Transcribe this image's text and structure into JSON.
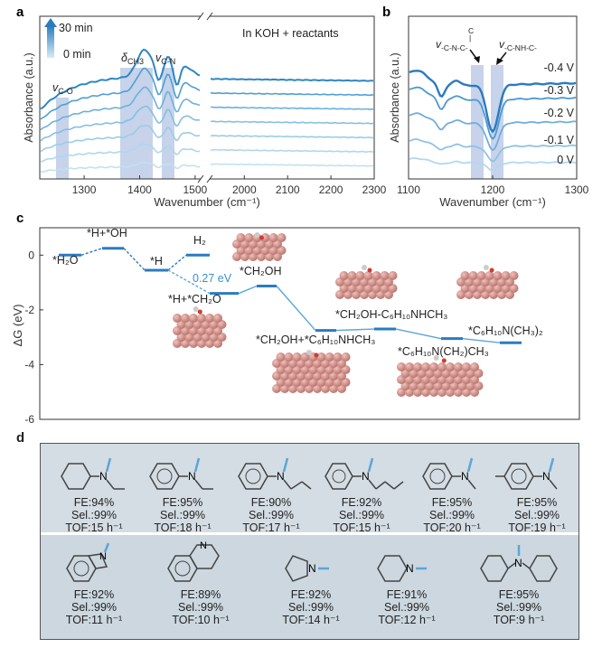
{
  "panels": {
    "a": "a",
    "b": "b",
    "c": "c",
    "d": "d"
  },
  "panel_a": {
    "legend_top": "30 min",
    "legend_bottom": "0 min",
    "condition": "In KOH + reactants",
    "ylabel": "Absorbance (a.u.)",
    "xlabel": "Wavenumber (cm⁻¹)",
    "band_labels": [
      "νC-O",
      "δCH3",
      "νC-N"
    ]
  },
  "panel_b": {
    "ylabel": "Absorbance (a.u.)",
    "xlabel": "Wavenumber (cm⁻¹)",
    "band_labels": [
      "ν-C-N-C-",
      "ν-C-NH-C-"
    ]
  },
  "panel_c": {
    "ylabel": "ΔG (eV)",
    "barrier_label": "0.27 eV"
  },
  "chart_data": [
    {
      "type": "line",
      "panel": "a",
      "title": "In KOH + reactants",
      "xlabel": "Wavenumber (cm⁻¹)",
      "ylabel": "Absorbance (a.u.)",
      "x_ranges": [
        [
          1220,
          1510
        ],
        [
          1920,
          2300
        ]
      ],
      "x_ticks": [
        1300,
        1400,
        1500,
        2000,
        2100,
        2200,
        2300
      ],
      "series_count": 7,
      "series_order": "bottom 0 min to top 30 min",
      "highlight_bands": [
        {
          "label": "νC-O",
          "from": 1255,
          "to": 1270
        },
        {
          "label": "δCH3",
          "from": 1360,
          "to": 1420
        },
        {
          "label": "νC-N",
          "from": 1435,
          "to": 1448
        }
      ],
      "legend": [
        "0 min",
        "30 min"
      ]
    },
    {
      "type": "line",
      "panel": "b",
      "xlabel": "Wavenumber (cm⁻¹)",
      "ylabel": "Absorbance (a.u.)",
      "xlim": [
        1100,
        1300
      ],
      "x_ticks": [
        1100,
        1200,
        1300
      ],
      "series": [
        {
          "name": "-0.4 V"
        },
        {
          "name": "-0.3 V"
        },
        {
          "name": "-0.2 V"
        },
        {
          "name": "-0.1 V"
        },
        {
          "name": "0 V"
        }
      ],
      "highlight_bands": [
        {
          "label": "ν-C-N-C-",
          "from": 1175,
          "to": 1190
        },
        {
          "label": "ν-C-NH-C-",
          "from": 1195,
          "to": 1210
        }
      ]
    },
    {
      "type": "line",
      "panel": "c",
      "ylabel": "ΔG (eV)",
      "ylim": [
        -6,
        1
      ],
      "y_ticks": [
        0,
        -2,
        -4,
        -6
      ],
      "states": [
        {
          "label": "*H₂O",
          "dG": 0.0
        },
        {
          "label": "*H+*OH",
          "dG": 0.25
        },
        {
          "label": "*H",
          "dG": -0.55
        },
        {
          "label": "H₂",
          "dG": 0.0
        },
        {
          "label": "*H+*CH₂O",
          "dG": -1.4
        },
        {
          "label": "*CH₂OH",
          "dG": -1.13
        },
        {
          "label": "*CH₂OH+*C₆H₁₀NHCH₃",
          "dG": -2.75
        },
        {
          "label": "*CH₂OH-C₆H₁₀NHCH₃",
          "dG": -2.7
        },
        {
          "label": "*C₆H₁₀N(CH₂)CH₃",
          "dG": -3.05
        },
        {
          "label": "*C₆H₁₀N(CH₃)₂",
          "dG": -3.2
        }
      ],
      "annotation": "0.27 eV"
    },
    {
      "type": "table",
      "panel": "d",
      "columns": [
        "FE",
        "Sel.",
        "TOF"
      ],
      "rows": [
        {
          "product": "N-ethyl-N-methylcyclohexylamine",
          "FE": "FE:94%",
          "Sel": "Sel.:99%",
          "TOF": "TOF:15 h⁻¹"
        },
        {
          "product": "N-ethyl-N-methylaniline",
          "FE": "FE:95%",
          "Sel": "Sel.:99%",
          "TOF": "TOF:18 h⁻¹"
        },
        {
          "product": "N-methyl-N-propylaniline",
          "FE": "FE:90%",
          "Sel": "Sel.:99%",
          "TOF": "TOF:17 h⁻¹"
        },
        {
          "product": "N-butyl-N-methylaniline",
          "FE": "FE:92%",
          "Sel": "Sel.:99%",
          "TOF": "TOF:15 h⁻¹"
        },
        {
          "product": "N,N-dimethylaniline",
          "FE": "FE:95%",
          "Sel": "Sel.:99%",
          "TOF": "TOF:20 h⁻¹"
        },
        {
          "product": "N,N,4-trimethylaniline",
          "FE": "FE:95%",
          "Sel": "Sel.:99%",
          "TOF": "TOF:19 h⁻¹"
        },
        {
          "product": "N-methylindoline",
          "FE": "FE:92%",
          "Sel": "Sel.:99%",
          "TOF": "TOF:11 h⁻¹"
        },
        {
          "product": "N-methyl-tetrahydroquinoline",
          "FE": "FE:89%",
          "Sel": "Sel.:99%",
          "TOF": "TOF:10 h⁻¹"
        },
        {
          "product": "N-methylpyrrolidine",
          "FE": "FE:92%",
          "Sel": "Sel.:99%",
          "TOF": "TOF:14 h⁻¹"
        },
        {
          "product": "N-methylpiperidine",
          "FE": "FE:91%",
          "Sel": "Sel.:99%",
          "TOF": "TOF:12 h⁻¹"
        },
        {
          "product": "N-methyldicyclohexylamine",
          "FE": "FE:95%",
          "Sel": "Sel.:99%",
          "TOF": "TOF:9 h⁻¹"
        }
      ]
    }
  ],
  "colors": {
    "dark_blue": "#2b7bbf",
    "mid_blue": "#5aa6d8",
    "light_blue": "#a9d0ea",
    "band": "#c6d3ea",
    "table_bg": "#d4dde4",
    "table_row2": "#ccd7df",
    "catalyst_pink": "#c98e88"
  }
}
